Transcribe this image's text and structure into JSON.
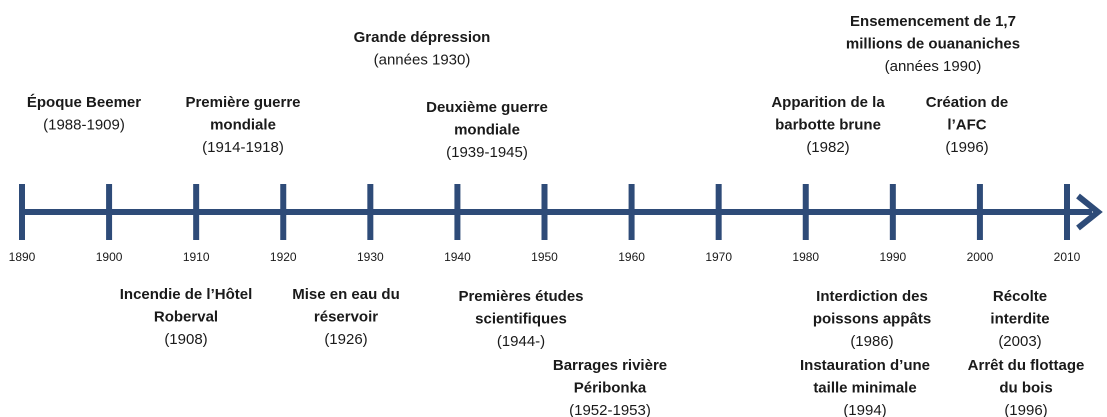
{
  "timeline": {
    "years": [
      1890,
      1900,
      1910,
      1920,
      1930,
      1940,
      1950,
      1960,
      1970,
      1980,
      1990,
      2000,
      2010
    ],
    "events_above": [
      {
        "lines": [
          "Époque Beemer"
        ],
        "date": "(1988-1909)"
      },
      {
        "lines": [
          "Première guerre",
          "mondiale"
        ],
        "date": "(1914-1918)"
      },
      {
        "lines": [
          "Grande dépression"
        ],
        "date": "(années 1930)"
      },
      {
        "lines": [
          "Deuxième guerre",
          "mondiale"
        ],
        "date": "(1939-1945)"
      },
      {
        "lines": [
          "Ensemencement de 1,7",
          "millions de ouananiches"
        ],
        "date": "(années 1990)"
      },
      {
        "lines": [
          "Apparition de la",
          "barbotte brune"
        ],
        "date": "(1982)"
      },
      {
        "lines": [
          "Création de",
          "l’AFC"
        ],
        "date": "(1996)"
      }
    ],
    "events_below": [
      {
        "lines": [
          "Incendie de l’Hôtel",
          "Roberval"
        ],
        "date": "(1908)"
      },
      {
        "lines": [
          "Mise en eau du",
          "réservoir"
        ],
        "date": "(1926)"
      },
      {
        "lines": [
          "Premières études",
          "scientifiques"
        ],
        "date": "(1944-)"
      },
      {
        "lines": [
          "Barrages rivière",
          "Péribonka"
        ],
        "date": "(1952-1953)"
      },
      {
        "lines": [
          "Interdiction des",
          "poissons appâts"
        ],
        "date": "(1986)"
      },
      {
        "lines": [
          "Instauration d’une",
          "taille minimale"
        ],
        "date": "(1994)"
      },
      {
        "lines": [
          "Récolte",
          "interdite"
        ],
        "date": "(2003)"
      },
      {
        "lines": [
          "Arrêt du flottage",
          "du bois"
        ],
        "date": "(1996)"
      }
    ]
  }
}
